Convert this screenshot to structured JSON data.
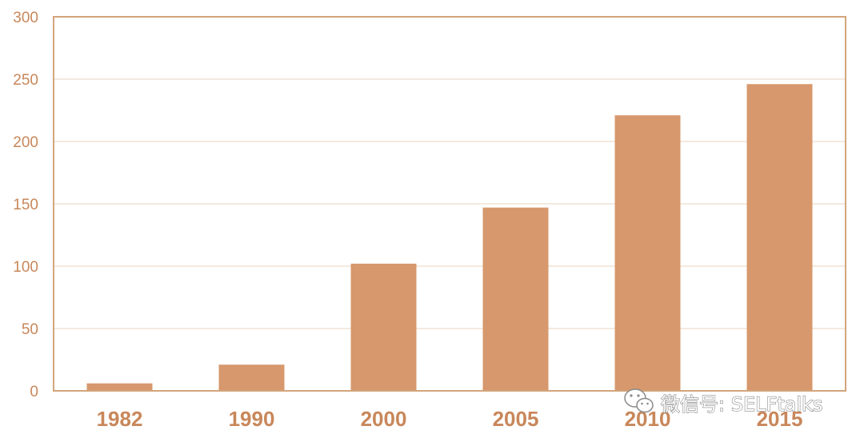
{
  "colors": {
    "bar": "#d6986c",
    "axis": "#d2a57c",
    "grid": "#f1e2d4",
    "text": "#c8875a"
  },
  "chart_data": {
    "type": "bar",
    "title": "",
    "xlabel": "",
    "ylabel": "",
    "categories": [
      "1982",
      "1990",
      "2000",
      "2005",
      "2010",
      "2015"
    ],
    "values": [
      6,
      21,
      102,
      147,
      221,
      246
    ],
    "ylim": [
      0,
      300
    ],
    "yticks": [
      "0",
      "50",
      "100",
      "150",
      "200",
      "250",
      "300"
    ],
    "grid": true,
    "legend": "none"
  },
  "watermark": {
    "icon": "wechat-icon",
    "text": "微信号: SELFtalks"
  }
}
